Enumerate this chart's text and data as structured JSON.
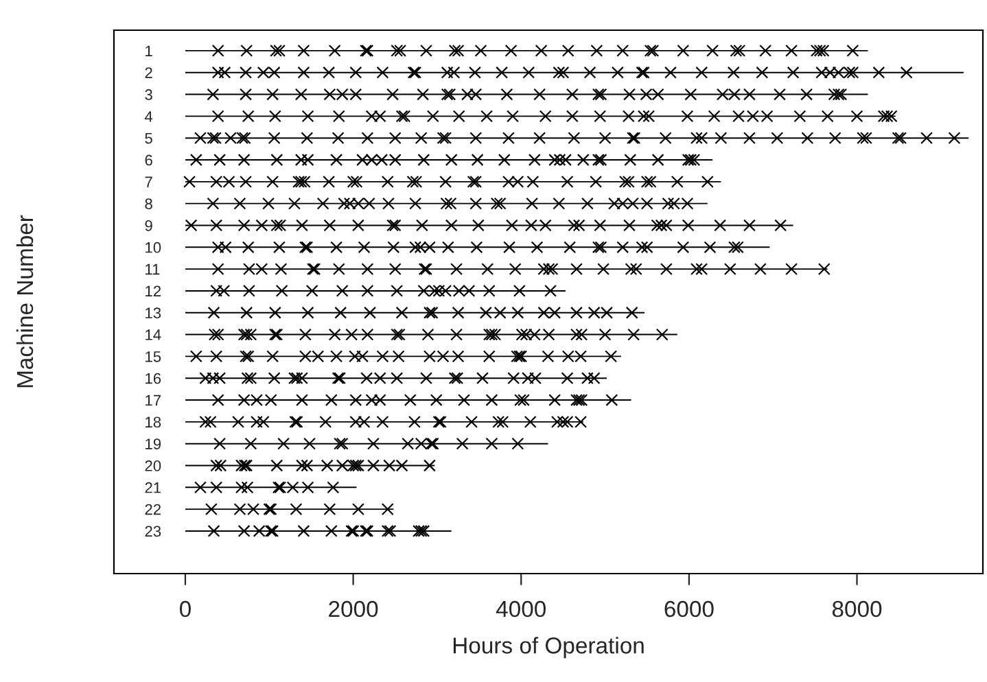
{
  "chart_data": {
    "type": "bar",
    "orientation": "horizontal",
    "xlabel": "Hours of Operation",
    "ylabel": "Machine Number",
    "categories": [
      "1",
      "2",
      "3",
      "4",
      "5",
      "6",
      "7",
      "8",
      "9",
      "10",
      "11",
      "12",
      "13",
      "14",
      "15",
      "16",
      "17",
      "18",
      "19",
      "20",
      "21",
      "22",
      "23"
    ],
    "xlim": [
      -850,
      9500
    ],
    "xticks": [
      0,
      2000,
      4000,
      6000,
      8000
    ],
    "grid": false,
    "legend": false,
    "series": [
      {
        "type": "bar",
        "color": "#000000",
        "values": [
          8130,
          9270,
          8130,
          8460,
          9330,
          6280,
          6380,
          6220,
          7240,
          6960,
          7650,
          4530,
          5470,
          5860,
          5190,
          5020,
          5310,
          4740,
          4320,
          2970,
          2040,
          2480,
          3170
        ]
      },
      {
        "type": "scatter",
        "marker": "cross",
        "color": "#000000",
        "x": [
          "1",
          "1",
          "1",
          "1",
          "1",
          "1",
          "1",
          "1",
          "1",
          "1",
          "1",
          "1",
          "1",
          "1",
          "1",
          "1",
          "1",
          "1",
          "1",
          "1",
          "1",
          "1",
          "1",
          "1",
          "1",
          "1",
          "1",
          "1",
          "1",
          "1",
          "1"
        ],
        "values": [
          390,
          730,
          1080,
          1120,
          1410,
          1780,
          2150,
          2170,
          2520,
          2560,
          2870,
          3210,
          3250,
          3520,
          3880,
          4240,
          4560,
          4900,
          5210,
          5540,
          5570,
          5930,
          6280,
          6560,
          6600,
          6910,
          7220,
          7520,
          7560,
          7600,
          7950
        ]
      },
      {
        "type": "scatter",
        "marker": "cross",
        "color": "#000000",
        "x": [
          "2",
          "2",
          "2",
          "2",
          "2",
          "2",
          "2",
          "2",
          "2",
          "2",
          "2",
          "2",
          "2",
          "2",
          "2",
          "2",
          "2",
          "2",
          "2",
          "2",
          "2",
          "2",
          "2",
          "2",
          "2",
          "2",
          "2",
          "2",
          "2",
          "2",
          "2",
          "2",
          "2",
          "2"
        ],
        "values": [
          390,
          470,
          720,
          930,
          1060,
          1410,
          1710,
          2030,
          2350,
          2720,
          2740,
          3120,
          3200,
          3450,
          3770,
          4090,
          4450,
          4500,
          4820,
          5150,
          5440,
          5460,
          5780,
          6150,
          6530,
          6870,
          7240,
          7580,
          7680,
          7780,
          7910,
          7950,
          8260,
          8590
        ]
      },
      {
        "type": "scatter",
        "marker": "cross",
        "color": "#000000",
        "x": [
          "3",
          "3",
          "3",
          "3",
          "3",
          "3",
          "3",
          "3",
          "3",
          "3",
          "3",
          "3",
          "3",
          "3",
          "3",
          "3",
          "3",
          "3",
          "3",
          "3",
          "3",
          "3",
          "3",
          "3",
          "3",
          "3",
          "3",
          "3",
          "3",
          "3"
        ],
        "values": [
          330,
          720,
          1040,
          1380,
          1720,
          1870,
          2030,
          2470,
          2830,
          3120,
          3150,
          3360,
          3460,
          3830,
          4220,
          4610,
          4920,
          4950,
          5290,
          5490,
          5630,
          6020,
          6400,
          6540,
          6720,
          7080,
          7400,
          7730,
          7780,
          7810
        ]
      },
      {
        "type": "scatter",
        "marker": "cross",
        "color": "#000000",
        "x": [
          "4",
          "4",
          "4",
          "4",
          "4",
          "4",
          "4",
          "4",
          "4",
          "4",
          "4",
          "4",
          "4",
          "4",
          "4",
          "4",
          "4",
          "4",
          "4",
          "4",
          "4",
          "4",
          "4",
          "4",
          "4",
          "4",
          "4",
          "4",
          "4",
          "4"
        ],
        "values": [
          390,
          750,
          1070,
          1460,
          1830,
          2220,
          2320,
          2580,
          2610,
          2950,
          3260,
          3590,
          3900,
          4290,
          4610,
          4940,
          5280,
          5460,
          5520,
          5980,
          6300,
          6590,
          6760,
          6930,
          7320,
          7650,
          8000,
          8320,
          8360,
          8410
        ]
      },
      {
        "type": "scatter",
        "marker": "cross",
        "color": "#000000",
        "x": [
          "5",
          "5",
          "5",
          "5",
          "5",
          "5",
          "5",
          "5",
          "5",
          "5",
          "5",
          "5",
          "5",
          "5",
          "5",
          "5",
          "5",
          "5",
          "5",
          "5",
          "5",
          "5",
          "5",
          "5",
          "5",
          "5",
          "5",
          "5",
          "5",
          "5",
          "5",
          "5",
          "5",
          "5",
          "5"
        ],
        "values": [
          180,
          330,
          360,
          540,
          680,
          710,
          1060,
          1450,
          1820,
          2170,
          2500,
          2810,
          3070,
          3100,
          3460,
          3850,
          4220,
          4630,
          5000,
          5330,
          5350,
          5720,
          6090,
          6150,
          6380,
          6720,
          7050,
          7410,
          7740,
          8070,
          8110,
          8490,
          8520,
          8830,
          9160
        ]
      },
      {
        "type": "scatter",
        "marker": "cross",
        "color": "#000000",
        "x": [
          "6",
          "6",
          "6",
          "6",
          "6",
          "6",
          "6",
          "6",
          "6",
          "6",
          "6",
          "6",
          "6",
          "6",
          "6",
          "6",
          "6",
          "6",
          "6",
          "6",
          "6",
          "6",
          "6",
          "6",
          "6",
          "6",
          "6"
        ],
        "values": [
          130,
          410,
          700,
          1090,
          1380,
          1460,
          1800,
          2110,
          2220,
          2340,
          2500,
          2840,
          3170,
          3480,
          3800,
          4160,
          4400,
          4460,
          4530,
          4740,
          4920,
          4950,
          5300,
          5630,
          5990,
          6020,
          6060
        ]
      },
      {
        "type": "scatter",
        "marker": "cross",
        "color": "#000000",
        "x": [
          "7",
          "7",
          "7",
          "7",
          "7",
          "7",
          "7",
          "7",
          "7",
          "7",
          "7",
          "7",
          "7",
          "7",
          "7",
          "7",
          "7",
          "7",
          "7",
          "7",
          "7",
          "7",
          "7",
          "7",
          "7",
          "7",
          "7",
          "7"
        ],
        "values": [
          50,
          370,
          520,
          720,
          1040,
          1350,
          1380,
          1420,
          1710,
          2000,
          2040,
          2410,
          2710,
          2750,
          3100,
          3430,
          3460,
          3850,
          3960,
          4140,
          4550,
          4890,
          5240,
          5280,
          5500,
          5540,
          5860,
          6220
        ]
      },
      {
        "type": "scatter",
        "marker": "cross",
        "color": "#000000",
        "x": [
          "8",
          "8",
          "8",
          "8",
          "8",
          "8",
          "8",
          "8",
          "8",
          "8",
          "8",
          "8",
          "8",
          "8",
          "8",
          "8",
          "8",
          "8",
          "8",
          "8",
          "8",
          "8",
          "8",
          "8",
          "8",
          "8"
        ],
        "values": [
          330,
          650,
          990,
          1300,
          1640,
          1890,
          1960,
          2060,
          2190,
          2420,
          2740,
          3110,
          3160,
          3460,
          3710,
          3750,
          4130,
          4450,
          4790,
          5110,
          5210,
          5330,
          5500,
          5750,
          5820,
          5980
        ]
      },
      {
        "type": "scatter",
        "marker": "cross",
        "color": "#000000",
        "x": [
          "9",
          "9",
          "9",
          "9",
          "9",
          "9",
          "9",
          "9",
          "9",
          "9",
          "9",
          "9",
          "9",
          "9",
          "9",
          "9",
          "9",
          "9",
          "9",
          "9",
          "9",
          "9",
          "9",
          "9",
          "9",
          "9",
          "9",
          "9"
        ],
        "values": [
          70,
          370,
          700,
          910,
          1090,
          1130,
          1390,
          1720,
          2060,
          2470,
          2500,
          2820,
          3170,
          3490,
          3890,
          4120,
          4290,
          4630,
          4690,
          4940,
          5290,
          5620,
          5670,
          5730,
          5990,
          6370,
          6720,
          7090
        ]
      },
      {
        "type": "scatter",
        "marker": "cross",
        "color": "#000000",
        "x": [
          "10",
          "10",
          "10",
          "10",
          "10",
          "10",
          "10",
          "10",
          "10",
          "10",
          "10",
          "10",
          "10",
          "10",
          "10",
          "10",
          "10",
          "10",
          "10",
          "10",
          "10",
          "10",
          "10",
          "10",
          "10",
          "10"
        ],
        "values": [
          390,
          480,
          750,
          1120,
          1430,
          1450,
          1800,
          2130,
          2480,
          2740,
          2800,
          2910,
          3130,
          3470,
          3860,
          4190,
          4580,
          4920,
          4950,
          5210,
          5440,
          5500,
          5930,
          6250,
          6540,
          6580
        ]
      },
      {
        "type": "scatter",
        "marker": "cross",
        "color": "#000000",
        "x": [
          "11",
          "11",
          "11",
          "11",
          "11",
          "11",
          "11",
          "11",
          "11",
          "11",
          "11",
          "11",
          "11",
          "11",
          "11",
          "11",
          "11",
          "11",
          "11",
          "11",
          "11",
          "11",
          "11",
          "11",
          "11",
          "11",
          "11",
          "11"
        ],
        "values": [
          390,
          760,
          910,
          1140,
          1520,
          1540,
          1830,
          2170,
          2500,
          2850,
          2870,
          3230,
          3600,
          3930,
          4270,
          4330,
          4370,
          4660,
          4980,
          5310,
          5370,
          5730,
          6090,
          6150,
          6490,
          6850,
          7220,
          7610
        ]
      },
      {
        "type": "scatter",
        "marker": "cross",
        "color": "#000000",
        "x": [
          "12",
          "12",
          "12",
          "12",
          "12",
          "12",
          "12",
          "12",
          "12",
          "12",
          "12",
          "12",
          "12",
          "12",
          "12",
          "12",
          "12"
        ],
        "values": [
          370,
          460,
          760,
          1150,
          1510,
          1870,
          2170,
          2520,
          2840,
          2970,
          3020,
          3100,
          3260,
          3380,
          3620,
          3980,
          4350
        ]
      },
      {
        "type": "scatter",
        "marker": "cross",
        "color": "#000000",
        "x": [
          "13",
          "13",
          "13",
          "13",
          "13",
          "13",
          "13",
          "13",
          "13",
          "13",
          "13",
          "13",
          "13",
          "13",
          "13",
          "13",
          "13",
          "13",
          "13"
        ],
        "values": [
          340,
          730,
          1070,
          1460,
          1850,
          2200,
          2580,
          2910,
          2940,
          3250,
          3580,
          3750,
          3960,
          4270,
          4400,
          4660,
          4870,
          5020,
          5320
        ]
      },
      {
        "type": "scatter",
        "marker": "cross",
        "color": "#000000",
        "x": [
          "14",
          "14",
          "14",
          "14",
          "14",
          "14",
          "14",
          "14",
          "14",
          "14",
          "14",
          "14",
          "14",
          "14",
          "14",
          "14",
          "14",
          "14",
          "14",
          "14",
          "14",
          "14",
          "14",
          "14",
          "14",
          "14",
          "14"
        ],
        "values": [
          350,
          390,
          700,
          730,
          780,
          1070,
          1090,
          1430,
          1780,
          1980,
          2170,
          2520,
          2550,
          2890,
          3230,
          3620,
          3650,
          3690,
          4010,
          4060,
          4160,
          4330,
          4660,
          4720,
          5000,
          5340,
          5680
        ]
      },
      {
        "type": "scatter",
        "marker": "cross",
        "color": "#000000",
        "x": [
          "15",
          "15",
          "15",
          "15",
          "15",
          "15",
          "15",
          "15",
          "15",
          "15",
          "15",
          "15",
          "15",
          "15",
          "15",
          "15",
          "15",
          "15",
          "15",
          "15",
          "15",
          "15",
          "15"
        ],
        "values": [
          130,
          370,
          720,
          750,
          1040,
          1430,
          1580,
          1800,
          2020,
          2110,
          2350,
          2540,
          2910,
          3070,
          3250,
          3620,
          3950,
          3980,
          4000,
          4320,
          4560,
          4710,
          5070
        ]
      },
      {
        "type": "scatter",
        "marker": "cross",
        "color": "#000000",
        "x": [
          "16",
          "16",
          "16",
          "16",
          "16",
          "16",
          "16",
          "16",
          "16",
          "16",
          "16",
          "16",
          "16",
          "16",
          "16",
          "16",
          "16",
          "16",
          "16",
          "16",
          "16",
          "16",
          "16",
          "16"
        ],
        "values": [
          240,
          330,
          410,
          740,
          780,
          1060,
          1300,
          1330,
          1390,
          1820,
          1840,
          2160,
          2320,
          2520,
          2870,
          3210,
          3240,
          3540,
          3910,
          4080,
          4170,
          4550,
          4790,
          4870
        ]
      },
      {
        "type": "scatter",
        "marker": "cross",
        "color": "#000000",
        "x": [
          "17",
          "17",
          "17",
          "17",
          "17",
          "17",
          "17",
          "17",
          "17",
          "17",
          "17",
          "17",
          "17",
          "17",
          "17",
          "17",
          "17",
          "17",
          "17",
          "17"
        ],
        "values": [
          390,
          700,
          850,
          1020,
          1390,
          1740,
          2030,
          2220,
          2320,
          2680,
          2990,
          3320,
          3650,
          3990,
          4030,
          4400,
          4660,
          4690,
          4720,
          5080
        ]
      },
      {
        "type": "scatter",
        "marker": "cross",
        "color": "#000000",
        "x": [
          "18",
          "18",
          "18",
          "18",
          "18",
          "18",
          "18",
          "18",
          "18",
          "18",
          "18",
          "18",
          "18",
          "18",
          "18",
          "18",
          "18",
          "18",
          "18",
          "18",
          "18",
          "18"
        ],
        "values": [
          240,
          300,
          630,
          850,
          930,
          1310,
          1330,
          1670,
          2030,
          2130,
          2350,
          2730,
          3020,
          3040,
          3410,
          3730,
          3780,
          4110,
          4430,
          4500,
          4550,
          4710
        ]
      },
      {
        "type": "scatter",
        "marker": "cross",
        "color": "#000000",
        "x": [
          "19",
          "19",
          "19",
          "19",
          "19",
          "19",
          "19",
          "19",
          "19",
          "19",
          "19",
          "19",
          "19",
          "19"
        ],
        "values": [
          410,
          780,
          1170,
          1480,
          1840,
          1870,
          2240,
          2650,
          2810,
          2930,
          2950,
          3300,
          3650,
          3960
        ]
      },
      {
        "type": "scatter",
        "marker": "cross",
        "color": "#000000",
        "x": [
          "20",
          "20",
          "20",
          "20",
          "20",
          "20",
          "20",
          "20",
          "20",
          "20",
          "20",
          "20",
          "20",
          "20",
          "20",
          "20",
          "20"
        ],
        "values": [
          370,
          420,
          670,
          710,
          730,
          1090,
          1390,
          1450,
          1690,
          1870,
          2000,
          2030,
          2060,
          2240,
          2430,
          2580,
          2910
        ]
      },
      {
        "type": "scatter",
        "marker": "cross",
        "color": "#000000",
        "x": [
          "21",
          "21",
          "21",
          "21",
          "21",
          "21",
          "21",
          "21",
          "21"
        ],
        "values": [
          180,
          370,
          670,
          740,
          1110,
          1130,
          1280,
          1460,
          1760
        ]
      },
      {
        "type": "scatter",
        "marker": "cross",
        "color": "#000000",
        "x": [
          "22",
          "22",
          "22",
          "22",
          "22",
          "22",
          "22",
          "22",
          "22"
        ],
        "values": [
          310,
          650,
          810,
          1000,
          1020,
          1320,
          1720,
          2060,
          2410
        ]
      },
      {
        "type": "scatter",
        "marker": "cross",
        "color": "#000000",
        "x": [
          "23",
          "23",
          "23",
          "23",
          "23",
          "23",
          "23",
          "23",
          "23",
          "23",
          "23",
          "23",
          "23",
          "23",
          "23",
          "23"
        ],
        "values": [
          340,
          700,
          880,
          1020,
          1040,
          1410,
          1740,
          1980,
          2000,
          2150,
          2170,
          2410,
          2440,
          2780,
          2810,
          2840
        ]
      }
    ]
  }
}
